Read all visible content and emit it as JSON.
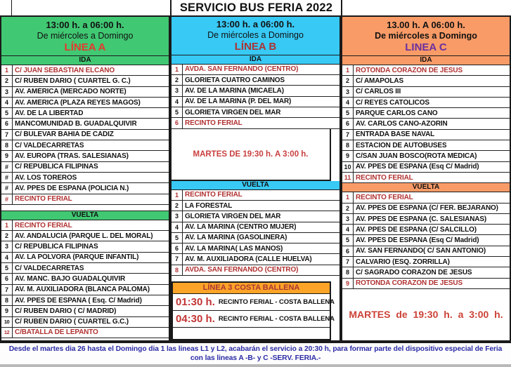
{
  "title": "SERVICIO BUS FERIA 2022",
  "colors": {
    "linea_a_bg": "#41C873",
    "linea_b_bg": "#38C9F5",
    "linea_c_bg": "#F99B67",
    "costa_header_bg": "#FCA428",
    "highlight_red": "#B13232",
    "linea_a_label": "#E3392B",
    "linea_b_label": "#A93535",
    "linea_c_label": "#6B2FA0",
    "footer_blue": "#2B2BA6"
  },
  "linea_a": {
    "time": "13:00 h. a 06:00 h.",
    "days": "De miércoles a Domingo",
    "name": "LÍNEA A",
    "ida_label": "IDA",
    "vuelta_label": "VUELTA",
    "ida": [
      {
        "n": "1",
        "t": "C/ JUAN SEBASTIAN ELCANO",
        "red": true
      },
      {
        "n": "2",
        "t": "C/ RUBEN DARIO ( CUARTEL G. C.)"
      },
      {
        "n": "3",
        "t": "AV. AMÉRICA (MERCADO NORTE)"
      },
      {
        "n": "4",
        "t": "AV. AMÉRICA (PLAZA REYES MAGOS)"
      },
      {
        "n": "5",
        "t": "AV. DE LA LIBERTAD"
      },
      {
        "n": "6",
        "t": "MANCOMUNIDAD B. GUADALQUIVIR"
      },
      {
        "n": "7",
        "t": "C/ BULEVAR BAHÍA DE CÁDIZ"
      },
      {
        "n": "8",
        "t": "C/ VALDECARRETAS"
      },
      {
        "n": "9",
        "t": "AV. EUROPA (TRAS. SALESIANAS)"
      },
      {
        "n": "#",
        "t": "C/ REPÚBLICA FILIPINAS"
      },
      {
        "n": "#",
        "t": "AV. LOS TOREROS"
      },
      {
        "n": "#",
        "t": "AV. PPES DE ESPAÑA (POLICIA N.)"
      },
      {
        "n": "#",
        "t": "RECINTO FERIAL",
        "red": true
      }
    ],
    "vuelta": [
      {
        "n": "1",
        "t": "RECINTO FERIAL",
        "red": true
      },
      {
        "n": "2",
        "t": "AV. ANDALUCÍA (PARQUE L. DEL MORAL)"
      },
      {
        "n": "3",
        "t": "C/ REPÚBLICA FILIPINAS"
      },
      {
        "n": "4",
        "t": "AV. LA PÓLVORA (PARQUE INFANTIL)"
      },
      {
        "n": "5",
        "t": "C/ VALDECARRETAS"
      },
      {
        "n": "6",
        "t": "AV. MANC. BAJO GUADALQUIVIR"
      },
      {
        "n": "7",
        "t": "AV. M. AUXILIADORA (BLANCA PALOMA)"
      },
      {
        "n": "8",
        "t": "AV. PPES DE ESPAÑA ( Esq. C/ Madrid)"
      },
      {
        "n": "9",
        "t": "C/ RUBEN DARIO ( C/ MADRID)"
      },
      {
        "n": "10",
        "t": "C/ RUBEN DARIO ( CUARTEL G.C.)",
        "small": true
      },
      {
        "n": "12",
        "t": "C/BATALLA DE LEPANTO",
        "red": true,
        "small": true
      }
    ]
  },
  "linea_b": {
    "time": "13:00 h. a 06:00 h.",
    "days": "De miércoles a Domingo",
    "name": "LÍNEA B",
    "ida_label": "IDA",
    "vuelta_label": "VUELTA",
    "notice": "MARTES DE 19:30 h. A 3:00 h.",
    "ida": [
      {
        "n": "1",
        "t": "AVDA. SAN FERNANDO (CENTRO)",
        "red": true
      },
      {
        "n": "2",
        "t": "GLORIETA CUATRO CAMINOS"
      },
      {
        "n": "3",
        "t": "AV. DE LA MARINA (MICAELA)"
      },
      {
        "n": "4",
        "t": "AV. DE LA MARINA (P. DEL MAR)"
      },
      {
        "n": "5",
        "t": "GLORIETA VIRGEN DEL MAR"
      },
      {
        "n": "6",
        "t": "RECINTO FERIAL",
        "red": true
      }
    ],
    "vuelta": [
      {
        "n": "1",
        "t": "RECINTO FERIAL",
        "red": true
      },
      {
        "n": "2",
        "t": "LA FORESTAL"
      },
      {
        "n": "3",
        "t": "GLORIETA VIRGEN DEL MAR"
      },
      {
        "n": "4",
        "t": "AV. LA MARINA (CENTRO MUJER)"
      },
      {
        "n": "5",
        "t": "AV. LA MARINA (GASOLINERA)"
      },
      {
        "n": "6",
        "t": "AV. LA MARINA( LAS MANOS)"
      },
      {
        "n": "7",
        "t": "AV. M. AUXILIADORA (CALLE HUELVA)"
      },
      {
        "n": "8",
        "t": "AVDA. SAN FERNANDO (CENTRO)",
        "red": true
      }
    ],
    "costa": {
      "header": "LÍNEA 3 COSTA BALLENA",
      "rows": [
        {
          "time": "01:30 h.",
          "route": "RECINTO FERIAL - COSTA BALLENA"
        },
        {
          "time": "04:30 h.",
          "route": "RECINTO FERIAL - COSTA BALLENA"
        }
      ]
    }
  },
  "linea_c": {
    "time": "13.00 h. A 06:00 h.",
    "days": "De miércoles a Domingo",
    "name": "LINEA C",
    "ida_label": "IDA",
    "vuelta_label": "VUELTA",
    "notice": "MARTES de 19:30 h. a 3:00 h.",
    "ida": [
      {
        "n": "1",
        "t": "ROTONDA CORAZÓN DE JESÚS",
        "red": true
      },
      {
        "n": "2",
        "t": "C/ AMAPOLAS"
      },
      {
        "n": "3",
        "t": "C/ CARLOS III"
      },
      {
        "n": "4",
        "t": "C/ REYES CATÓLICOS"
      },
      {
        "n": "5",
        "t": "PARQUE CARLOS CANO"
      },
      {
        "n": "6",
        "t": "AV. CARLOS CANO-AZORÍN"
      },
      {
        "n": "7",
        "t": "ENTRADA BASE NAVAL"
      },
      {
        "n": "8",
        "t": "ESTACIÓN DE AUTOBUSES"
      },
      {
        "n": "9",
        "t": "C/SAN JUAN BOSCO(ROTA MÉDICA)"
      },
      {
        "n": "10",
        "t": "AV. PPES DE ESPAÑA (Esq C/ Madrid)"
      },
      {
        "n": "11",
        "t": "RECINTO FERIAL",
        "red": true
      }
    ],
    "vuelta": [
      {
        "n": "1",
        "t": "RECINTO FERIAL",
        "red": true
      },
      {
        "n": "2",
        "t": "AV. PPES DE ESPAÑA (C/ FER. BEJARANO)"
      },
      {
        "n": "3",
        "t": "AV. PPES DE ESPAÑA (C. SALESIANAS)"
      },
      {
        "n": "4",
        "t": "AV. PPES DE ESPAÑA (C/ SALCILLO)"
      },
      {
        "n": "5",
        "t": "AV. PPES DE ESPAÑA (Esq C/ Madrid)"
      },
      {
        "n": "6",
        "t": "AV. SAN FERNANDO( C/ SAN ANTONIO)"
      },
      {
        "n": "7",
        "t": "CALVARIO (ESQ. ZORRILLA)"
      },
      {
        "n": "8",
        "t": "C/ SAGRADO CORAZÓN DE JESÚS"
      },
      {
        "n": "9",
        "t": "ROTONDA CORAZÓN DE JESÚS",
        "red": true
      }
    ]
  },
  "footer": {
    "line1": "Desde el martes dia 26 hasta el Domingo dia 1 las lineas L1 y L2, acabarán el servicio a 20:30 h, para formar parte del dispositivo especial de Feria",
    "line2": "con las lineas A -B- y C -SERV. FERIA.-"
  }
}
